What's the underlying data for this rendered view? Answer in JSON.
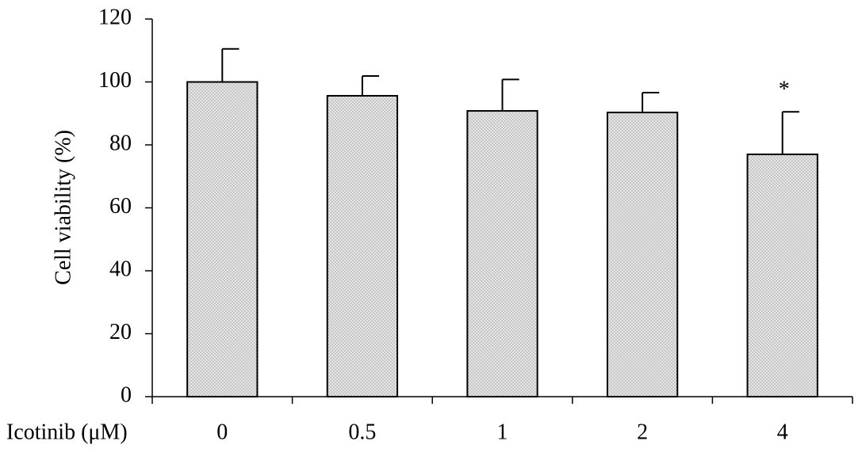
{
  "chart_data": {
    "type": "bar",
    "y_label": "Cell viability (%)",
    "x_label": "Icotinib (μM)",
    "categories": [
      "0",
      "0.5",
      "1",
      "2",
      "4"
    ],
    "values": [
      100,
      95.6,
      90.8,
      90.3,
      77
    ],
    "errors": [
      10.5,
      6.3,
      10,
      6.3,
      13.5
    ],
    "color": "#e4e4e4",
    "edge_color": "#000000",
    "ylim": [
      0,
      120
    ],
    "yticks": [
      0,
      20,
      40,
      60,
      80,
      100,
      120
    ],
    "grid": false,
    "annotations": [
      {
        "category": "4",
        "text": "*"
      }
    ]
  }
}
